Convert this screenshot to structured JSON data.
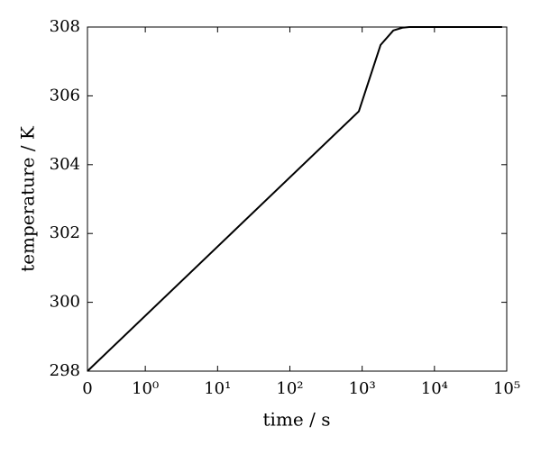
{
  "chart_data": {
    "type": "line",
    "xlabel": "time / s",
    "ylabel": "temperature / K",
    "xscale": "symlog",
    "x": [
      0,
      900,
      1800,
      2700,
      3600,
      4500,
      5400,
      86400
    ],
    "series": [
      {
        "name": "temperature",
        "color": "#000000",
        "values": [
          298,
          305.55,
          307.48,
          307.9,
          307.98,
          308,
          308,
          308
        ]
      }
    ],
    "xlim": [
      0,
      100000
    ],
    "xticks": [
      0,
      {
        "value": 1,
        "label": "10⁰"
      },
      {
        "value": 10,
        "label": "10¹"
      },
      {
        "value": 100,
        "label": "10²"
      },
      {
        "value": 1000,
        "label": "10³"
      },
      {
        "value": 10000,
        "label": "10⁴"
      },
      {
        "value": 100000,
        "label": "10⁵"
      }
    ],
    "ylim": [
      298,
      308
    ],
    "yticks": [
      298,
      300,
      302,
      304,
      306,
      308
    ]
  }
}
